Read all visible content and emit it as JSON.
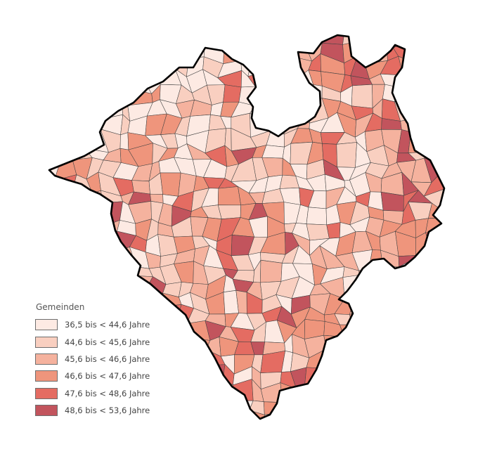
{
  "legend": {
    "title": "Gemeinden",
    "classes": [
      {
        "label": "36,5 bis < 44,6 Jahre",
        "color": "#fdeae3"
      },
      {
        "label": "44,6 bis < 45,6 Jahre",
        "color": "#f9cfc0"
      },
      {
        "label": "45,6 bis < 46,6 Jahre",
        "color": "#f5b29e"
      },
      {
        "label": "46,6 bis < 47,6 Jahre",
        "color": "#ef957c"
      },
      {
        "label": "47,6 bis < 48,6 Jahre",
        "color": "#e46c62"
      },
      {
        "label": "48,6 bis < 53,6 Jahre",
        "color": "#c2545d"
      }
    ]
  },
  "map": {
    "region_fill": "#f5b29e",
    "boundary_color": "#000000",
    "municipality_border_color": "#444444"
  }
}
